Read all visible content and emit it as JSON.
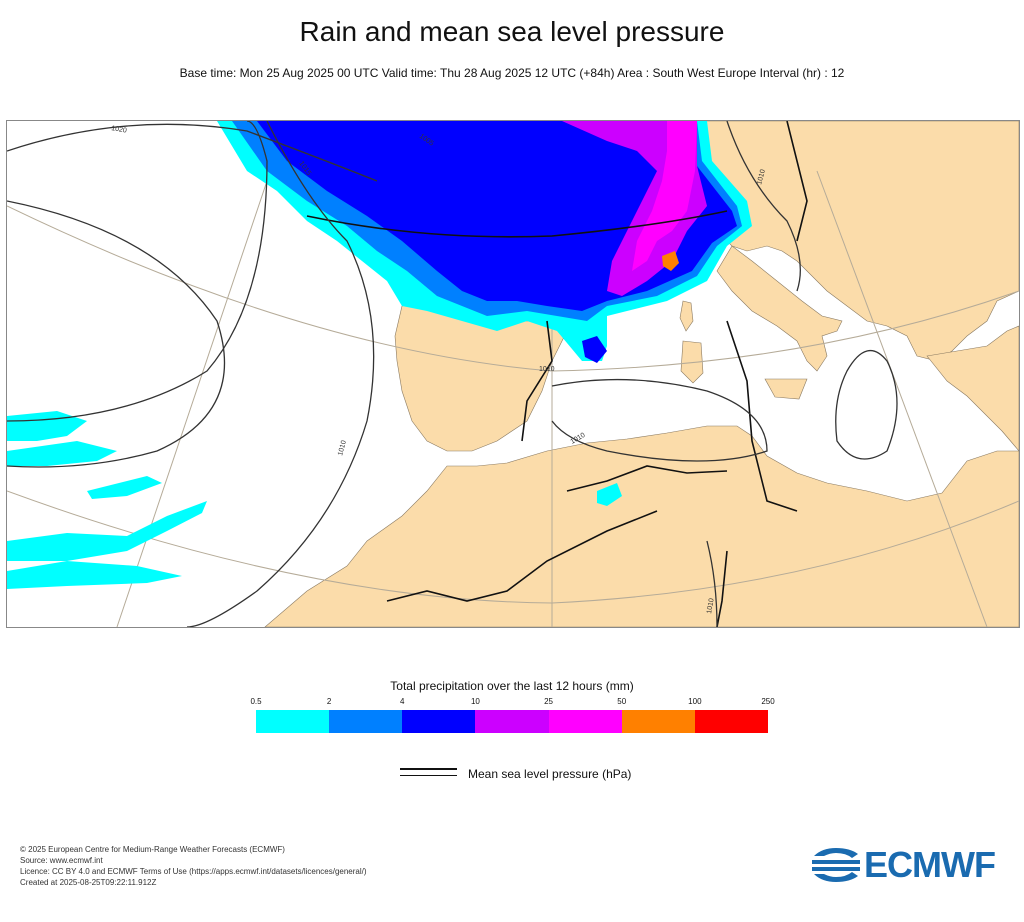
{
  "header": {
    "title": "Rain and mean sea level pressure",
    "subtitle": "Base time: Mon 25 Aug 2025 00 UTC Valid time: Thu 28 Aug 2025 12 UTC (+84h) Area : South West Europe Interval (hr) : 12"
  },
  "map": {
    "isobar_labels": [
      "1020",
      "1015",
      "1010",
      "1005",
      "1010",
      "1010",
      "1010",
      "1010"
    ],
    "colors": {
      "land": "#fbdcaa",
      "sea": "#ffffff",
      "isobar": "#333333",
      "border": "#222222",
      "graticule": "#b5ab98"
    }
  },
  "colorbar": {
    "title": "Total precipitation over the last 12 hours (mm)",
    "ticks": [
      "0.5",
      "2",
      "4",
      "10",
      "25",
      "50",
      "100",
      "250"
    ],
    "colors": [
      "#00ffff",
      "#0080ff",
      "#0000ff",
      "#cc00ff",
      "#ff00ff",
      "#ff8000",
      "#ff0000"
    ]
  },
  "legend": {
    "label": "Mean sea level pressure (hPa)"
  },
  "footer": {
    "lines": [
      "© 2025 European Centre for Medium-Range Weather Forecasts (ECMWF)",
      "Source: www.ecmwf.int",
      "Licence: CC BY 4.0 and ECMWF Terms of Use (https://apps.ecmwf.int/datasets/licences/general/)",
      "Created at 2025-08-25T09:22:11.912Z"
    ]
  },
  "logo": {
    "text": "ECMWF"
  }
}
